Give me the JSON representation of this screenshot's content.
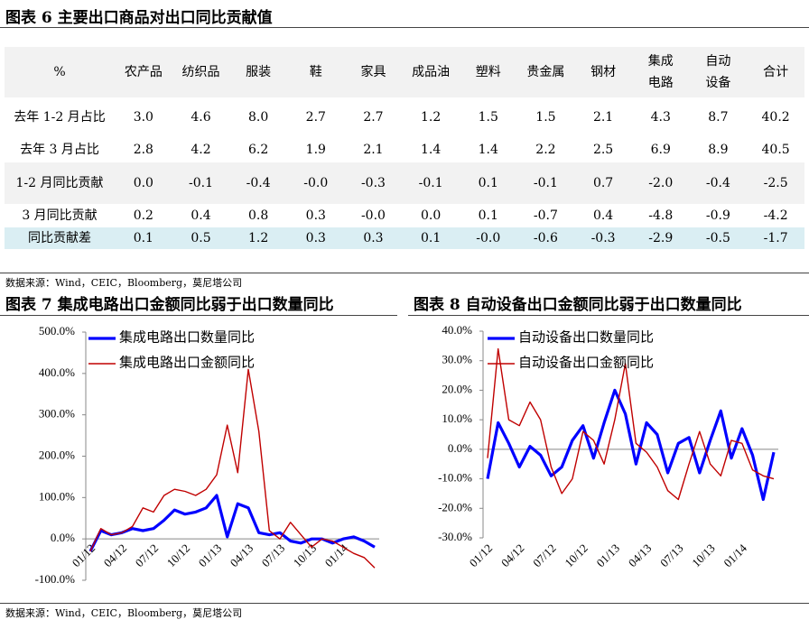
{
  "table_section": {
    "title": "图表 6 主要出口商品对出口同比贡献值",
    "header": [
      "%",
      "农产品",
      "纺织品",
      "服装",
      "鞋",
      "家具",
      "成品油",
      "塑料",
      "贵金属",
      "钢材",
      "集成电路",
      "自动设备",
      "合计"
    ],
    "rows": [
      [
        "去年 1-2 月占比",
        "3.0",
        "4.6",
        "8.0",
        "2.7",
        "2.7",
        "1.2",
        "1.5",
        "1.5",
        "2.1",
        "4.3",
        "8.7",
        "40.2"
      ],
      [
        "去年 3 月占比",
        "2.8",
        "4.2",
        "6.2",
        "1.9",
        "2.1",
        "1.4",
        "1.4",
        "2.2",
        "2.5",
        "6.9",
        "8.9",
        "40.5"
      ],
      [
        "1-2 月同比贡献",
        "0.0",
        "-0.1",
        "-0.4",
        "-0.0",
        "-0.3",
        "-0.1",
        "0.1",
        "-0.1",
        "0.7",
        "-2.0",
        "-0.4",
        "-2.5"
      ],
      [
        "3 月同比贡献",
        "0.2",
        "0.4",
        "0.8",
        "0.3",
        "-0.0",
        "0.0",
        "0.1",
        "-0.7",
        "0.4",
        "-4.8",
        "-0.9",
        "-4.2"
      ],
      [
        "同比贡献差",
        "0.1",
        "0.5",
        "1.2",
        "0.3",
        "0.3",
        "0.1",
        "-0.0",
        "-0.6",
        "-0.3",
        "-2.9",
        "-0.5",
        "-1.7"
      ]
    ],
    "source": "数据来源：Wind，CEIC，Bloomberg，莫尼塔公司"
  },
  "chart_data": [
    {
      "type": "line",
      "title": "图表 7 集成电路出口金额同比弱于出口数量同比",
      "categories": [
        "01/12",
        null,
        null,
        "04/12",
        null,
        null,
        "07/12",
        null,
        null,
        "10/12",
        null,
        null,
        "01/13",
        null,
        null,
        "04/13",
        null,
        null,
        "07/13",
        null,
        null,
        "10/13",
        null,
        null,
        "01/14",
        null,
        null,
        null
      ],
      "series": [
        {
          "name": "集成电路出口数量同比",
          "color": "#0000ff",
          "values": [
            -30,
            20,
            10,
            15,
            25,
            20,
            25,
            45,
            70,
            60,
            65,
            75,
            105,
            5,
            85,
            75,
            15,
            10,
            15,
            -5,
            -10,
            0,
            0,
            -10,
            0,
            5,
            -5,
            -20
          ]
        },
        {
          "name": "集成电路出口金额同比",
          "color": "#c00000",
          "values": [
            -30,
            25,
            10,
            15,
            30,
            75,
            65,
            105,
            120,
            115,
            105,
            120,
            155,
            275,
            160,
            410,
            260,
            20,
            0,
            40,
            10,
            -20,
            0,
            -5,
            -20,
            -35,
            -45,
            -70
          ]
        }
      ],
      "ylim": [
        -100,
        500
      ],
      "yticks": [
        {
          "value": -100,
          "label": "-100.0%"
        },
        {
          "value": 0,
          "label": "0.0%"
        },
        {
          "value": 100,
          "label": "100.0%"
        },
        {
          "value": 200,
          "label": "200.0%"
        },
        {
          "value": 300,
          "label": "300.0%"
        },
        {
          "value": 400,
          "label": "400.0%"
        },
        {
          "value": 500,
          "label": "500.0%"
        }
      ]
    },
    {
      "type": "line",
      "title": "图表 8 自动设备出口金额同比弱于出口数量同比",
      "categories": [
        "01/12",
        null,
        null,
        "04/12",
        null,
        null,
        "07/12",
        null,
        null,
        "10/12",
        null,
        null,
        "01/13",
        null,
        null,
        "04/13",
        null,
        null,
        "07/13",
        null,
        null,
        "10/13",
        null,
        null,
        "01/14",
        null,
        null,
        null
      ],
      "series": [
        {
          "name": "自动设备出口数量同比",
          "color": "#0000ff",
          "values": [
            -10,
            9,
            2,
            -6,
            1,
            -2,
            -9,
            -6,
            3,
            8,
            -3,
            9,
            20,
            12,
            -5,
            9,
            5,
            -8,
            2,
            4,
            -8,
            3,
            13,
            -3,
            7,
            -2,
            -17,
            -1
          ]
        },
        {
          "name": "自动设备出口金额同比",
          "color": "#c00000",
          "values": [
            -3,
            34,
            10,
            8,
            16,
            10,
            -6,
            -15,
            -10,
            6,
            3,
            -5,
            10,
            29,
            2,
            -1,
            -6,
            -14,
            -17,
            -5,
            6,
            -5,
            -9,
            3,
            2,
            -7,
            -9,
            -10
          ]
        }
      ],
      "ylim": [
        -30,
        40
      ],
      "yticks": [
        {
          "value": -30,
          "label": "-30.0%"
        },
        {
          "value": -20,
          "label": "-20.0%"
        },
        {
          "value": -10,
          "label": "-10.0%"
        },
        {
          "value": 0,
          "label": "0.0%"
        },
        {
          "value": 10,
          "label": "10.0%"
        },
        {
          "value": 20,
          "label": "20.0%"
        },
        {
          "value": 30,
          "label": "30.0%"
        },
        {
          "value": 40,
          "label": "40.0%"
        }
      ]
    }
  ],
  "source2": "数据来源：Wind，CEIC，Bloomberg，莫尼塔公司"
}
